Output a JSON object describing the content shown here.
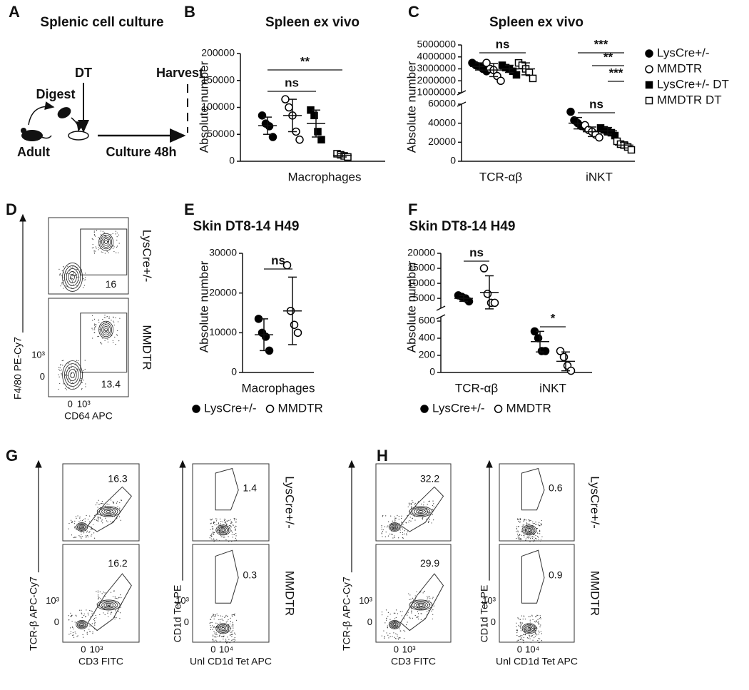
{
  "schematic": {
    "label": "A",
    "title": "Splenic cell culture",
    "treatment": "DT",
    "harvest": "Harvest",
    "digest": "Digest",
    "source": "Adult",
    "culture": "Culture 48h"
  },
  "chart_data": [
    {
      "label": "B",
      "type": "dotplot",
      "title": "Spleen ex vivo",
      "ylabel": "Absolute number",
      "categories": [
        "Macrophages"
      ],
      "ylim": [
        0,
        200000
      ],
      "yticks": [
        0,
        50000,
        100000,
        150000,
        200000
      ],
      "series": [
        {
          "marker": "circle",
          "filled": true,
          "color": "#000000",
          "values": [
            [
              85000,
              70000,
              65000,
              45000
            ]
          ],
          "mean": [
            66000
          ],
          "sd": [
            16000
          ]
        },
        {
          "marker": "circle",
          "filled": false,
          "color": "#000000",
          "values": [
            [
              115000,
              100000,
              85000,
              55000,
              40000
            ]
          ],
          "mean": [
            85000
          ],
          "sd": [
            30000
          ]
        },
        {
          "marker": "square",
          "filled": true,
          "color": "#000000",
          "values": [
            [
              95000,
              85000,
              55000,
              40000
            ]
          ],
          "mean": [
            70000
          ],
          "sd": [
            25000
          ]
        },
        {
          "marker": "square",
          "filled": false,
          "color": "#000000",
          "values": [
            [
              14000,
              12000,
              10000,
              8000
            ]
          ],
          "mean": [
            11000
          ],
          "sd": [
            3000
          ]
        }
      ],
      "annotations": [
        "ns",
        "**"
      ]
    },
    {
      "label": "C",
      "type": "dotplot",
      "title": "Spleen ex vivo",
      "ylabel": "Absolute number",
      "categories": [
        "TCR-αβ",
        "iNKT"
      ],
      "ylim": [
        0,
        60000
      ],
      "yticks": [
        0,
        20000,
        40000,
        60000
      ],
      "ylim_break": [
        1000000,
        5000000
      ],
      "yticks_break": [
        1000000,
        2000000,
        3000000,
        4000000,
        5000000
      ],
      "legend": "right",
      "series": [
        {
          "name": "LysCre+/-",
          "marker": "circle",
          "filled": true,
          "color": "#000000",
          "values": [
            [
              3500000,
              3300000,
              3200000,
              3000000,
              2800000
            ],
            [
              52000,
              43000,
              40000,
              37000,
              36000
            ]
          ],
          "mean": [
            3200000,
            40000
          ],
          "sd": [
            300000,
            6000
          ]
        },
        {
          "name": "MMDTR",
          "marker": "circle",
          "filled": false,
          "color": "#000000",
          "values": [
            [
              3500000,
              3000000,
              2900000,
              2400000,
              2000000
            ],
            [
              38000,
              33000,
              31000,
              28000,
              25000
            ]
          ],
          "mean": [
            2900000,
            31000
          ],
          "sd": [
            550000,
            5000
          ]
        },
        {
          "name": "LysCre+/- DT",
          "marker": "square",
          "filled": true,
          "color": "#000000",
          "values": [
            [
              3300000,
              3100000,
              3000000,
              2800000,
              2500000
            ],
            [
              35000,
              33000,
              31000,
              30000,
              27000
            ]
          ],
          "mean": [
            3000000,
            32000
          ],
          "sd": [
            300000,
            3500
          ]
        },
        {
          "name": "MMDTR DT",
          "marker": "square",
          "filled": false,
          "color": "#000000",
          "values": [
            [
              3500000,
              3300000,
              3000000,
              2700000,
              2200000
            ],
            [
              21000,
              18000,
              17000,
              15000,
              12000
            ]
          ],
          "mean": [
            3000000,
            17000
          ],
          "sd": [
            500000,
            3000
          ]
        }
      ],
      "annotations": [
        "ns",
        "ns",
        "***",
        "**",
        "***"
      ]
    },
    {
      "label": "E",
      "type": "dotplot",
      "title": "Skin DT8-14 H49",
      "ylabel": "Absolute number",
      "categories": [
        "Macrophages"
      ],
      "ylim": [
        0,
        30000
      ],
      "yticks": [
        0,
        10000,
        20000,
        30000
      ],
      "legend": "bottom",
      "series": [
        {
          "name": "LysCre+/-",
          "marker": "circle",
          "filled": true,
          "color": "#000000",
          "values": [
            [
              13500,
              10000,
              9000,
              5500
            ]
          ],
          "mean": [
            9500
          ],
          "sd": [
            4000
          ]
        },
        {
          "name": "MMDTR",
          "marker": "circle",
          "filled": false,
          "color": "#000000",
          "values": [
            [
              27000,
              15500,
              12000,
              10000
            ]
          ],
          "mean": [
            15500
          ],
          "sd": [
            8500
          ]
        }
      ],
      "annotations": [
        "ns"
      ]
    },
    {
      "label": "F",
      "type": "dotplot",
      "title": "Skin DT8-14 H49",
      "ylabel": "Absolute number",
      "categories": [
        "TCR-αβ",
        "iNKT"
      ],
      "ylim": [
        0,
        650
      ],
      "yticks": [
        0,
        200,
        400,
        600
      ],
      "ylim_break": [
        1700,
        20000
      ],
      "yticks_break": [
        5000,
        10000,
        15000,
        20000
      ],
      "legend": "bottom",
      "series": [
        {
          "name": "LysCre+/-",
          "marker": "circle",
          "filled": true,
          "color": "#000000",
          "values": [
            [
              6000,
              5500,
              5000,
              4000
            ],
            [
              480,
              400,
              250,
              250
            ]
          ],
          "mean": [
            5000,
            360
          ],
          "sd": [
            1000,
            120
          ]
        },
        {
          "name": "MMDTR",
          "marker": "circle",
          "filled": false,
          "color": "#000000",
          "values": [
            [
              15000,
              6500,
              3500,
              3500
            ],
            [
              250,
              180,
              80,
              20
            ]
          ],
          "mean": [
            7000,
            130
          ],
          "sd": [
            5500,
            110
          ]
        }
      ],
      "annotations": [
        "ns",
        "*"
      ]
    }
  ],
  "flow_panels": [
    {
      "label": "D",
      "ylabels": [
        "F4/80 PE-Cy7"
      ],
      "xlabels": [
        "CD64 APC"
      ],
      "x_ticks": [
        [
          "0",
          "10³"
        ]
      ],
      "y_ticks": [
        [
          "10³",
          "0"
        ]
      ],
      "rows": [
        "LysCre+/-",
        "MMDTR"
      ],
      "gates": [
        [
          16
        ],
        [
          13.4
        ]
      ]
    },
    {
      "label": "G",
      "ylabels": [
        "TCR-β APC-Cy7",
        "CD1d Tet PE"
      ],
      "xlabels": [
        "CD3 FITC",
        "Unl CD1d Tet APC"
      ],
      "x_ticks": [
        [
          "0",
          "10³"
        ],
        [
          "0",
          "10⁴"
        ]
      ],
      "y_ticks": [
        [
          "10³",
          "0"
        ],
        [
          "10³",
          "0"
        ]
      ],
      "rows": [
        "LysCre+/-",
        "MMDTR"
      ],
      "gates": [
        [
          16.3,
          1.4
        ],
        [
          16.2,
          0.3
        ]
      ]
    },
    {
      "label": "H",
      "ylabels": [
        "TCR-β APC-Cy7",
        "CD1d Tet PE"
      ],
      "xlabels": [
        "CD3 FITC",
        "Unl CD1d Tet APC"
      ],
      "x_ticks": [
        [
          "0",
          "10³"
        ],
        [
          "0",
          "10⁴"
        ]
      ],
      "y_ticks": [
        [
          "10³",
          "0"
        ],
        [
          "10³",
          "0"
        ]
      ],
      "rows": [
        "LysCre+/-",
        "MMDTR"
      ],
      "gates": [
        [
          32.2,
          0.6
        ],
        [
          29.9,
          0.9
        ]
      ]
    }
  ]
}
